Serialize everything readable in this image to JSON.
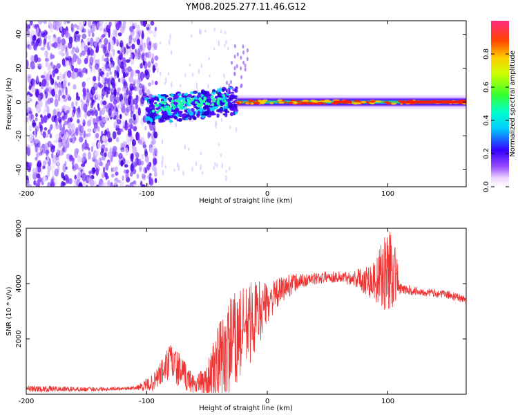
{
  "title": "YM08.2025.277.11.46.G12",
  "colors": {
    "snr_line": "#ee3333",
    "axis": "#000000"
  },
  "chart_data": [
    {
      "type": "heatmap",
      "title": "YM08.2025.277.11.46.G12",
      "xlabel": "Height of straight line (km)",
      "ylabel": "Frequency (Hz)",
      "xlim": [
        -200,
        165
      ],
      "ylim": [
        -50,
        48
      ],
      "xticks": [
        -200,
        -100,
        0,
        100
      ],
      "xtick_labels": [
        "-200",
        "-100",
        "0",
        "100"
      ],
      "yticks": [
        -40,
        -20,
        0,
        20,
        40
      ],
      "ytick_labels": [
        "-40",
        "-20",
        "0",
        "20",
        "40"
      ],
      "regions": [
        {
          "x_from": -200,
          "x_to": -100,
          "description_value": "noise",
          "amplitude": 0.05
        },
        {
          "x_from": -100,
          "x_to": -25,
          "freq_center": 0,
          "freq_halfwidth": 8,
          "amplitude": 0.4
        },
        {
          "x_from": -25,
          "x_to": 165,
          "freq_center": 0,
          "freq_halfwidth": 3,
          "amplitude": 0.85
        }
      ],
      "colorbar": {
        "label": "Normalized spectral amplitude",
        "range": [
          0.0,
          1.0
        ],
        "ticks": [
          0.0,
          0.2,
          0.4,
          0.6,
          0.8
        ],
        "tick_labels": [
          "0.0",
          "0.2",
          "0.4",
          "0.6",
          "0.8"
        ]
      }
    },
    {
      "type": "line",
      "xlabel": "Height of straight line (km)",
      "ylabel": "SNR (10 * v/v)",
      "xlim": [
        -200,
        165
      ],
      "ylim": [
        0,
        6000
      ],
      "xticks": [
        -200,
        -100,
        0,
        100
      ],
      "xtick_labels": [
        "-200",
        "-100",
        "0",
        "100"
      ],
      "yticks": [
        2000,
        4000,
        6000
      ],
      "ytick_labels": [
        "2000",
        "4000",
        "6000"
      ],
      "series": [
        {
          "name": "SNR",
          "x": [
            -200,
            -150,
            -110,
            -95,
            -80,
            -70,
            -60,
            -50,
            -40,
            -30,
            -20,
            -10,
            0,
            10,
            20,
            30,
            50,
            70,
            90,
            100,
            105,
            110,
            130,
            150,
            165
          ],
          "y": [
            200,
            180,
            220,
            400,
            1200,
            700,
            350,
            500,
            1200,
            1800,
            2300,
            2800,
            3300,
            3700,
            4000,
            4100,
            4250,
            4200,
            4100,
            4500,
            4600,
            3800,
            3700,
            3600,
            3400
          ],
          "noise_amplitude": [
            120,
            80,
            60,
            300,
            700,
            600,
            300,
            600,
            1400,
            1800,
            1600,
            1400,
            700,
            500,
            400,
            250,
            200,
            250,
            800,
            1600,
            1500,
            200,
            150,
            150,
            150
          ]
        }
      ]
    }
  ]
}
